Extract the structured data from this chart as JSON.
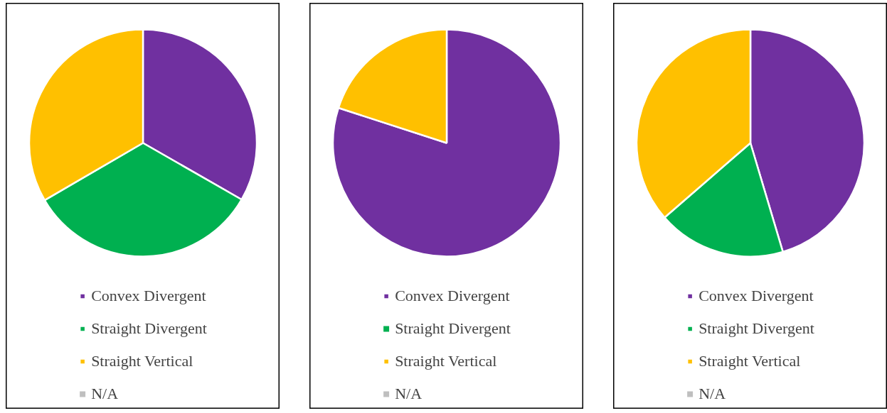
{
  "chart_data": [
    {
      "type": "pie",
      "categories": [
        "Convex Divergent",
        "Straight Divergent",
        "Straight Vertical",
        "N/A"
      ],
      "values": [
        33.3,
        33.3,
        33.4,
        0
      ],
      "colors": [
        "#7030a0",
        "#00b050",
        "#ffc000",
        "#bfbfbf"
      ],
      "legend": "bottom"
    },
    {
      "type": "pie",
      "categories": [
        "Convex Divergent",
        "Straight Divergent",
        "Straight Vertical",
        "N/A"
      ],
      "values": [
        80,
        0,
        20,
        0
      ],
      "colors": [
        "#7030a0",
        "#00b050",
        "#ffc000",
        "#bfbfbf"
      ],
      "legend": "bottom"
    },
    {
      "type": "pie",
      "categories": [
        "Convex Divergent",
        "Straight Divergent",
        "Straight Vertical",
        "N/A"
      ],
      "values": [
        45.4,
        18.2,
        36.4,
        0
      ],
      "colors": [
        "#7030a0",
        "#00b050",
        "#ffc000",
        "#bfbfbf"
      ],
      "legend": "bottom"
    }
  ]
}
